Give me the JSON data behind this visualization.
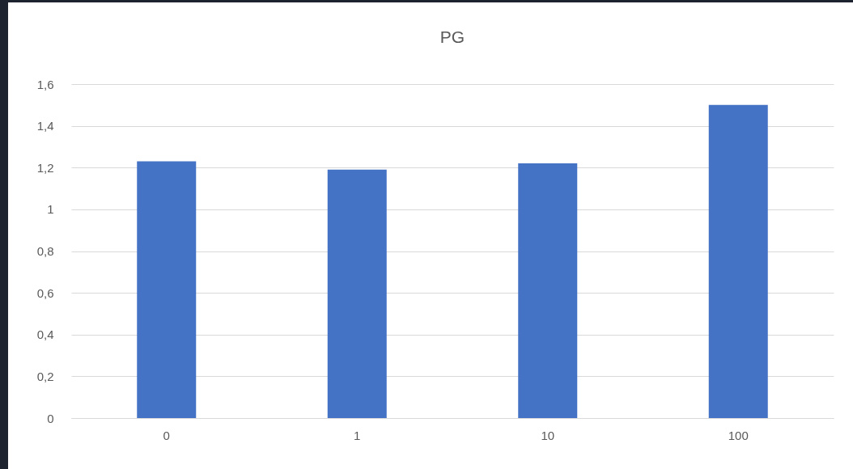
{
  "chart_data": {
    "type": "bar",
    "title": "PG",
    "categories": [
      "0",
      "1",
      "10",
      "100"
    ],
    "series": [
      {
        "color": "#4472c4",
        "values": [
          1.23,
          1.19,
          1.22,
          1.5
        ]
      }
    ],
    "ylim": [
      0,
      1.6
    ],
    "yticks": [
      0,
      {
        "value": 0.2,
        "label": "0,2"
      },
      {
        "value": 0.4,
        "label": "0,4"
      },
      {
        "value": 0.6,
        "label": "0,6"
      },
      {
        "value": 0.8,
        "label": "0,8"
      },
      1,
      {
        "value": 1.2,
        "label": "1,2"
      },
      {
        "value": 1.4,
        "label": "1,4"
      },
      {
        "value": 1.6,
        "label": "1,6"
      }
    ],
    "grid": "y",
    "legend": false
  }
}
